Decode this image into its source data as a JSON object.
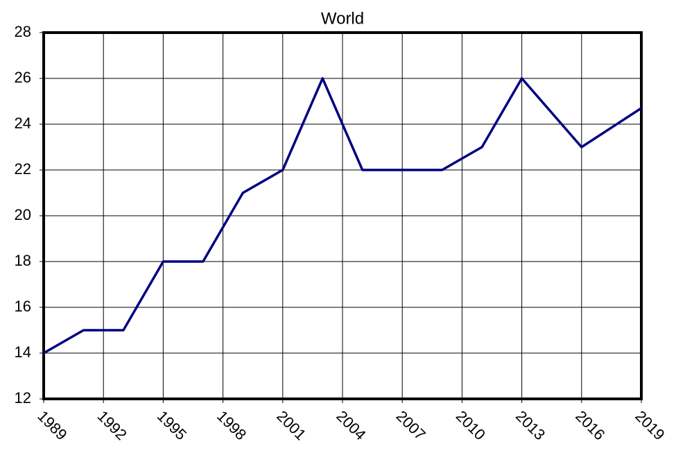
{
  "chart_data": {
    "type": "line",
    "title": "World",
    "x": [
      1989,
      1991,
      1993,
      1995,
      1997,
      1999,
      2001,
      2003,
      2005,
      2007,
      2009,
      2011,
      2013,
      2016,
      2019
    ],
    "series": [
      {
        "name": "World",
        "color": "#000080",
        "values": [
          14,
          15,
          15,
          18,
          18,
          21,
          22,
          26,
          22,
          22,
          22,
          23,
          26,
          23,
          24.7
        ]
      }
    ],
    "xlim": [
      1989,
      2019
    ],
    "xticks": [
      1989,
      1992,
      1995,
      1998,
      2001,
      2004,
      2007,
      2010,
      2013,
      2016,
      2019
    ],
    "ylim": [
      12,
      28
    ],
    "yticks": [
      12,
      14,
      16,
      18,
      20,
      22,
      24,
      26,
      28
    ],
    "grid": true
  }
}
